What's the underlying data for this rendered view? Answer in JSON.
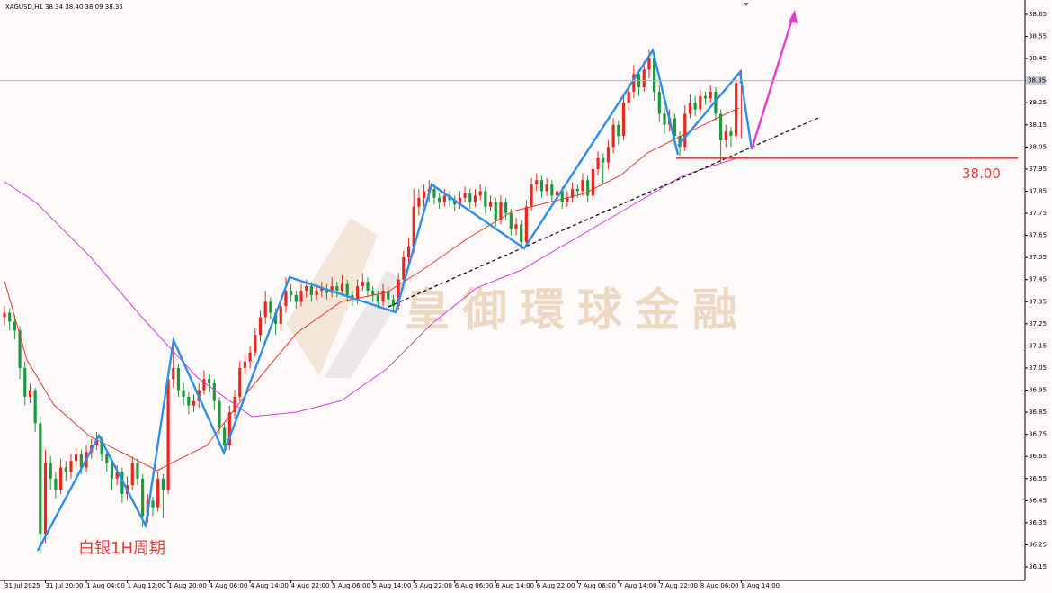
{
  "chart_data": {
    "type": "candlestick",
    "header": "XAGUSD,H1  38.34 38.40 38.09 38.35",
    "watermark": "皇御環球金融",
    "annotation": "白银1H周期",
    "up_color": "#e8281e",
    "down_color": "#1a9a3a",
    "ylim": [
      36.089,
      38.715
    ],
    "yticks": [
      36.15,
      36.25,
      36.35,
      36.45,
      36.55,
      36.65,
      36.75,
      36.85,
      36.95,
      37.05,
      37.15,
      37.25,
      37.35,
      37.45,
      37.55,
      37.65,
      37.75,
      37.85,
      37.95,
      38.05,
      38.15,
      38.25,
      38.35,
      38.45,
      38.55,
      38.65
    ],
    "last_price": 38.35,
    "level": {
      "value": 38.0,
      "label": "38.00",
      "color": "#f0383c"
    },
    "categories": [
      "31 Jul 2025",
      null,
      null,
      null,
      null,
      null,
      null,
      null,
      "31 Jul 20:00",
      null,
      null,
      null,
      null,
      null,
      null,
      null,
      "1 Aug 04:00",
      null,
      null,
      null,
      null,
      null,
      null,
      null,
      "1 Aug 12:00",
      null,
      null,
      null,
      null,
      null,
      null,
      null,
      "1 Aug 20:00",
      null,
      null,
      null,
      null,
      null,
      null,
      null,
      "4 Aug 06:00",
      null,
      null,
      null,
      null,
      null,
      null,
      null,
      "4 Aug 14:00",
      null,
      null,
      null,
      null,
      null,
      null,
      null,
      "4 Aug 22:00",
      null,
      null,
      null,
      null,
      null,
      null,
      null,
      "5 Aug 06:00",
      null,
      null,
      null,
      null,
      null,
      null,
      null,
      "5 Aug 14:00",
      null,
      null,
      null,
      null,
      null,
      null,
      null,
      "5 Aug 22:00",
      null,
      null,
      null,
      null,
      null,
      null,
      null,
      "6 Aug 06:00",
      null,
      null,
      null,
      null,
      null,
      null,
      null,
      "6 Aug 14:00",
      null,
      null,
      null,
      null,
      null,
      null,
      null,
      "6 Aug 22:00",
      null,
      null,
      null,
      null,
      null,
      null,
      null,
      "7 Aug 06:00",
      null,
      null,
      null,
      null,
      null,
      null,
      null,
      "7 Aug 14:00",
      null,
      null,
      null,
      null,
      null,
      null,
      null,
      "7 Aug 22:00",
      null,
      null,
      null,
      null,
      null,
      null,
      null,
      "8 Aug 06:00",
      null,
      null,
      null,
      null,
      null,
      null,
      null,
      "8 Aug 14:00"
    ],
    "candles": [
      [
        37.28,
        37.33,
        37.24,
        37.3
      ],
      [
        37.3,
        37.32,
        37.22,
        37.26
      ],
      [
        37.26,
        37.29,
        37.18,
        37.22
      ],
      [
        37.22,
        37.24,
        37.0,
        37.05
      ],
      [
        37.05,
        37.08,
        36.88,
        36.92
      ],
      [
        36.92,
        36.98,
        36.89,
        36.95
      ],
      [
        36.95,
        36.96,
        36.76,
        36.8
      ],
      [
        36.8,
        36.83,
        36.21,
        36.3
      ],
      [
        36.3,
        36.68,
        36.26,
        36.62
      ],
      [
        36.62,
        36.65,
        36.5,
        36.55
      ],
      [
        36.55,
        36.58,
        36.46,
        36.5
      ],
      [
        36.5,
        36.64,
        36.48,
        36.6
      ],
      [
        36.6,
        36.63,
        36.54,
        36.58
      ],
      [
        36.58,
        36.66,
        36.55,
        36.63
      ],
      [
        36.63,
        36.69,
        36.6,
        36.66
      ],
      [
        36.66,
        36.68,
        36.57,
        36.6
      ],
      [
        36.6,
        36.7,
        36.58,
        36.67
      ],
      [
        36.67,
        36.73,
        36.64,
        36.7
      ],
      [
        36.7,
        36.76,
        36.68,
        36.73
      ],
      [
        36.73,
        36.74,
        36.63,
        36.66
      ],
      [
        36.66,
        36.68,
        36.58,
        36.62
      ],
      [
        36.62,
        36.64,
        36.5,
        36.55
      ],
      [
        36.55,
        36.61,
        36.52,
        36.58
      ],
      [
        36.58,
        36.6,
        36.44,
        36.48
      ],
      [
        36.48,
        36.56,
        36.45,
        36.52
      ],
      [
        36.52,
        36.65,
        36.5,
        36.62
      ],
      [
        36.62,
        36.64,
        36.52,
        36.55
      ],
      [
        36.55,
        36.57,
        36.33,
        36.38
      ],
      [
        36.38,
        36.48,
        36.35,
        36.45
      ],
      [
        36.45,
        36.47,
        36.38,
        36.42
      ],
      [
        36.42,
        36.58,
        36.4,
        36.55
      ],
      [
        36.55,
        36.57,
        36.37,
        36.5
      ],
      [
        36.5,
        37.04,
        36.48,
        37.0
      ],
      [
        37.0,
        37.17,
        36.96,
        37.05
      ],
      [
        37.05,
        37.07,
        36.92,
        36.95
      ],
      [
        36.95,
        36.98,
        36.88,
        36.92
      ],
      [
        36.92,
        36.94,
        36.84,
        36.88
      ],
      [
        36.88,
        36.93,
        36.85,
        36.9
      ],
      [
        36.9,
        36.98,
        36.87,
        36.95
      ],
      [
        36.95,
        37.04,
        36.93,
        37.0
      ],
      [
        37.0,
        37.02,
        36.94,
        36.98
      ],
      [
        36.98,
        37.0,
        36.86,
        36.9
      ],
      [
        36.9,
        36.92,
        36.75,
        36.78
      ],
      [
        36.78,
        36.8,
        36.67,
        36.7
      ],
      [
        36.7,
        36.88,
        36.68,
        36.85
      ],
      [
        36.85,
        36.95,
        36.82,
        36.92
      ],
      [
        36.92,
        37.08,
        36.9,
        37.05
      ],
      [
        37.05,
        37.11,
        37.02,
        37.08
      ],
      [
        37.08,
        37.15,
        37.05,
        37.12
      ],
      [
        37.12,
        37.23,
        37.1,
        37.2
      ],
      [
        37.2,
        37.31,
        37.17,
        37.28
      ],
      [
        37.28,
        37.4,
        37.25,
        37.35
      ],
      [
        37.35,
        37.37,
        37.27,
        37.3
      ],
      [
        37.3,
        37.32,
        37.2,
        37.25
      ],
      [
        37.25,
        37.36,
        37.22,
        37.33
      ],
      [
        37.33,
        37.46,
        37.3,
        37.4
      ],
      [
        37.4,
        37.43,
        37.35,
        37.38
      ],
      [
        37.38,
        37.4,
        37.32,
        37.35
      ],
      [
        37.35,
        37.43,
        37.33,
        37.4
      ],
      [
        37.4,
        37.45,
        37.37,
        37.42
      ],
      [
        37.42,
        37.44,
        37.35,
        37.38
      ],
      [
        37.38,
        37.43,
        37.36,
        37.4
      ],
      [
        37.4,
        37.44,
        37.37,
        37.41
      ],
      [
        37.41,
        37.43,
        37.36,
        37.39
      ],
      [
        37.39,
        37.46,
        37.37,
        37.42
      ],
      [
        37.42,
        37.44,
        37.37,
        37.4
      ],
      [
        37.4,
        37.47,
        37.38,
        37.43
      ],
      [
        37.43,
        37.45,
        37.35,
        37.38
      ],
      [
        37.38,
        37.4,
        37.33,
        37.36
      ],
      [
        37.36,
        37.45,
        37.34,
        37.42
      ],
      [
        37.42,
        37.48,
        37.4,
        37.44
      ],
      [
        37.44,
        37.46,
        37.37,
        37.4
      ],
      [
        37.4,
        37.42,
        37.35,
        37.38
      ],
      [
        37.38,
        37.4,
        37.32,
        37.35
      ],
      [
        37.35,
        37.43,
        37.33,
        37.4
      ],
      [
        37.4,
        37.42,
        37.33,
        37.36
      ],
      [
        37.36,
        37.38,
        37.3,
        37.33
      ],
      [
        37.33,
        37.48,
        37.31,
        37.45
      ],
      [
        37.45,
        37.58,
        37.43,
        37.55
      ],
      [
        37.55,
        37.64,
        37.52,
        37.6
      ],
      [
        37.6,
        37.86,
        37.57,
        37.78
      ],
      [
        37.78,
        37.86,
        37.74,
        37.82
      ],
      [
        37.82,
        37.88,
        37.78,
        37.85
      ],
      [
        37.85,
        37.9,
        37.8,
        37.86
      ],
      [
        37.86,
        37.88,
        37.79,
        37.82
      ],
      [
        37.82,
        37.84,
        37.77,
        37.8
      ],
      [
        37.8,
        37.86,
        37.78,
        37.83
      ],
      [
        37.83,
        37.85,
        37.78,
        37.81
      ],
      [
        37.81,
        37.83,
        37.76,
        37.79
      ],
      [
        37.79,
        37.85,
        37.77,
        37.82
      ],
      [
        37.82,
        37.87,
        37.8,
        37.84
      ],
      [
        37.84,
        37.86,
        37.77,
        37.8
      ],
      [
        37.8,
        37.86,
        37.78,
        37.83
      ],
      [
        37.83,
        37.88,
        37.81,
        37.85
      ],
      [
        37.85,
        37.87,
        37.75,
        37.78
      ],
      [
        37.78,
        37.83,
        37.76,
        37.8
      ],
      [
        37.8,
        37.82,
        37.69,
        37.72
      ],
      [
        37.72,
        37.83,
        37.7,
        37.8
      ],
      [
        37.8,
        37.82,
        37.72,
        37.75
      ],
      [
        37.75,
        37.77,
        37.65,
        37.68
      ],
      [
        37.68,
        37.73,
        37.65,
        37.7
      ],
      [
        37.7,
        37.72,
        37.59,
        37.62
      ],
      [
        37.62,
        37.81,
        37.6,
        37.78
      ],
      [
        37.78,
        37.91,
        37.76,
        37.88
      ],
      [
        37.88,
        37.93,
        37.85,
        37.9
      ],
      [
        37.9,
        37.92,
        37.82,
        37.85
      ],
      [
        37.85,
        37.91,
        37.83,
        37.88
      ],
      [
        37.88,
        37.9,
        37.8,
        37.83
      ],
      [
        37.83,
        37.88,
        37.81,
        37.85
      ],
      [
        37.85,
        37.87,
        37.77,
        37.8
      ],
      [
        37.8,
        37.85,
        37.78,
        37.82
      ],
      [
        37.82,
        37.89,
        37.8,
        37.86
      ],
      [
        37.86,
        37.88,
        37.82,
        37.85
      ],
      [
        37.85,
        37.93,
        37.83,
        37.9
      ],
      [
        37.9,
        37.92,
        37.8,
        37.83
      ],
      [
        37.83,
        37.98,
        37.81,
        37.95
      ],
      [
        37.95,
        38.03,
        37.92,
        38.0
      ],
      [
        38.0,
        38.02,
        37.88,
        37.98
      ],
      [
        37.98,
        38.08,
        37.95,
        38.05
      ],
      [
        38.05,
        38.18,
        38.02,
        38.15
      ],
      [
        38.15,
        38.17,
        38.06,
        38.1
      ],
      [
        38.1,
        38.28,
        38.08,
        38.25
      ],
      [
        38.25,
        38.34,
        38.22,
        38.3
      ],
      [
        38.3,
        38.42,
        38.27,
        38.38
      ],
      [
        38.38,
        38.4,
        38.28,
        38.32
      ],
      [
        38.32,
        38.44,
        38.3,
        38.4
      ],
      [
        38.4,
        38.49,
        38.36,
        38.45
      ],
      [
        38.45,
        38.47,
        38.26,
        38.3
      ],
      [
        38.3,
        38.33,
        38.16,
        38.2
      ],
      [
        38.2,
        38.23,
        38.11,
        38.15
      ],
      [
        38.15,
        38.22,
        38.12,
        38.18
      ],
      [
        38.18,
        38.2,
        38.06,
        38.1
      ],
      [
        38.1,
        38.12,
        38.01,
        38.05
      ],
      [
        38.05,
        38.24,
        38.03,
        38.2
      ],
      [
        38.2,
        38.29,
        38.18,
        38.25
      ],
      [
        38.25,
        38.28,
        38.19,
        38.22
      ],
      [
        38.22,
        38.31,
        38.2,
        38.28
      ],
      [
        38.28,
        38.3,
        38.24,
        38.27
      ],
      [
        38.27,
        38.33,
        38.25,
        38.3
      ],
      [
        38.3,
        38.32,
        38.17,
        38.2
      ],
      [
        38.2,
        38.22,
        37.98,
        38.08
      ],
      [
        38.08,
        38.15,
        38.05,
        38.12
      ],
      [
        38.12,
        38.14,
        38.05,
        38.1
      ],
      [
        38.1,
        38.37,
        38.08,
        38.34
      ],
      [
        38.34,
        38.4,
        38.09,
        38.35
      ]
    ]
  }
}
